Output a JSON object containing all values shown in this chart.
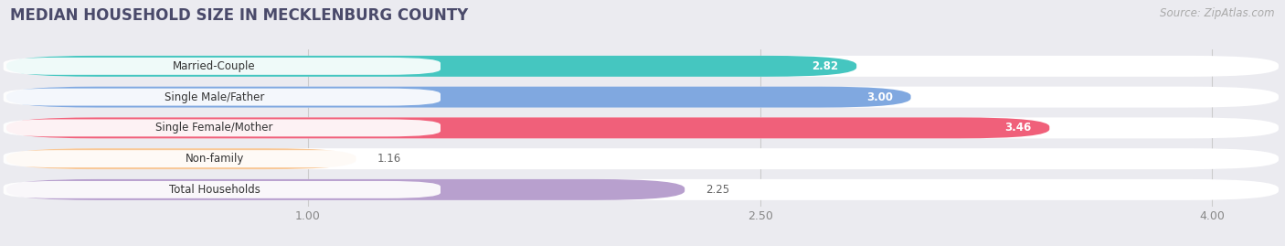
{
  "title": "MEDIAN HOUSEHOLD SIZE IN MECKLENBURG COUNTY",
  "source": "Source: ZipAtlas.com",
  "categories": [
    "Married-Couple",
    "Single Male/Father",
    "Single Female/Mother",
    "Non-family",
    "Total Households"
  ],
  "values": [
    2.82,
    3.0,
    3.46,
    1.16,
    2.25
  ],
  "bar_colors": [
    "#45c6c0",
    "#80a8e0",
    "#f0607a",
    "#f8c898",
    "#b8a0ce"
  ],
  "value_colors": [
    "white",
    "white",
    "white",
    "#777777",
    "#777777"
  ],
  "x_ticks": [
    1.0,
    2.5,
    4.0
  ],
  "x_min": 0.0,
  "x_max": 4.22,
  "title_fontsize": 12,
  "source_fontsize": 8.5,
  "bar_height": 0.68,
  "bar_gap": 0.32,
  "background_color": "#ebebf0"
}
